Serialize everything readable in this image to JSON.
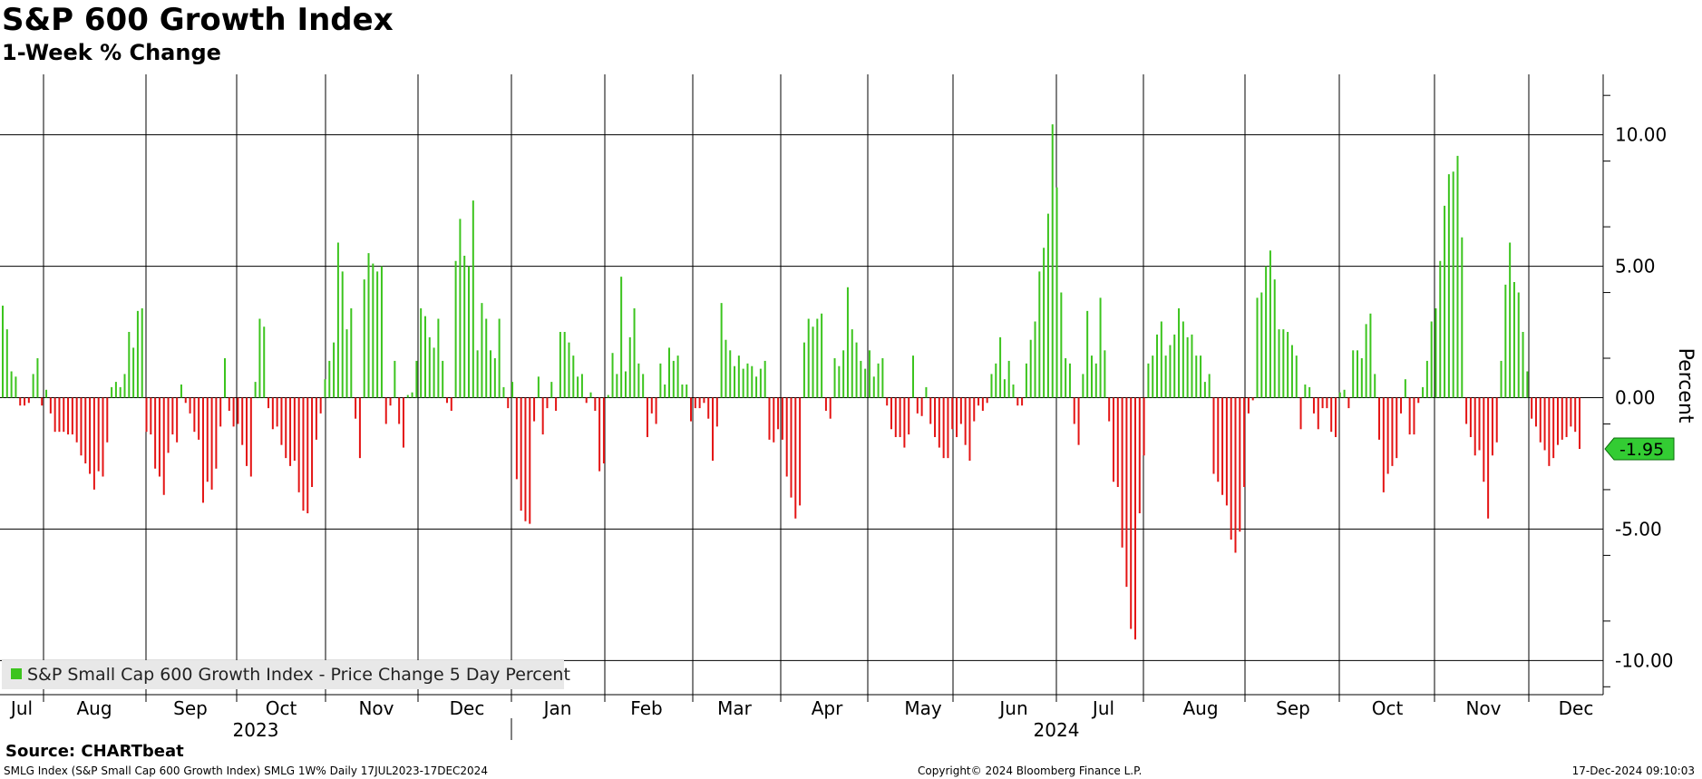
{
  "header": {
    "title": "S&P 600 Growth Index",
    "subtitle": "1-Week % Change"
  },
  "source": "Source: CHARTbeat",
  "footer": {
    "left": "SMLG Index (S&P Small Cap 600 Growth Index) SMLG 1W% Daily 17JUL2023-17DEC2024",
    "center": "Copyright© 2024 Bloomberg Finance L.P.",
    "right": "17-Dec-2024 09:10:03"
  },
  "colors": {
    "positive": "#3cc41e",
    "negative": "#e41414",
    "badge": "#33cc33",
    "grid": "#000000"
  },
  "chart_data": {
    "type": "bar",
    "title": "S&P 600 Growth Index",
    "subtitle": "1-Week % Change",
    "ylabel": "Percent",
    "ylim": [
      -11.3,
      12.3
    ],
    "yticks": [
      10,
      5,
      0,
      -5,
      -10
    ],
    "ytick_labels": [
      "10.00",
      "5.00",
      "0.00",
      "-5.00",
      "-10.00"
    ],
    "grid": true,
    "legend": {
      "position": "bottom-left",
      "label": "S&P Small Cap 600 Growth Index - Price Change 5 Day Percent"
    },
    "last_value_label": "-1.95",
    "last_value": -1.95,
    "months": [
      {
        "label": "Jul",
        "year": 2023
      },
      {
        "label": "Aug",
        "year": 2023
      },
      {
        "label": "Sep",
        "year": 2023
      },
      {
        "label": "Oct",
        "year": 2023
      },
      {
        "label": "Nov",
        "year": 2023
      },
      {
        "label": "Dec",
        "year": 2023
      },
      {
        "label": "Jan",
        "year": 2024
      },
      {
        "label": "Feb",
        "year": 2024
      },
      {
        "label": "Mar",
        "year": 2024
      },
      {
        "label": "Apr",
        "year": 2024
      },
      {
        "label": "May",
        "year": 2024
      },
      {
        "label": "Jun",
        "year": 2024
      },
      {
        "label": "Jul",
        "year": 2024
      },
      {
        "label": "Aug",
        "year": 2024
      },
      {
        "label": "Sep",
        "year": 2024
      },
      {
        "label": "Oct",
        "year": 2024
      },
      {
        "label": "Nov",
        "year": 2024
      },
      {
        "label": "Dec",
        "year": 2024
      }
    ],
    "years": [
      "2023",
      "2024"
    ],
    "series": [
      {
        "name": "S&P Small Cap 600 Growth Index - Price Change 5 Day Percent",
        "values": [
          3.5,
          2.6,
          1.0,
          0.8,
          -0.3,
          -0.3,
          -0.2,
          0.9,
          1.5,
          -0.3,
          0.3,
          -0.6,
          -1.3,
          -1.3,
          -1.3,
          -1.4,
          -1.4,
          -1.7,
          -2.2,
          -2.5,
          -2.9,
          -3.5,
          -2.8,
          -3.0,
          -1.7,
          0.4,
          0.6,
          0.4,
          0.9,
          2.5,
          1.9,
          3.3,
          3.4,
          -1.3,
          -1.4,
          -2.7,
          -3.0,
          -3.7,
          -2.1,
          -1.4,
          -1.7,
          0.5,
          -0.2,
          -0.6,
          -1.3,
          -1.6,
          -4.0,
          -3.2,
          -3.5,
          -2.7,
          -1.1,
          1.5,
          -0.5,
          -1.1,
          -1.0,
          -1.8,
          -2.6,
          -3.0,
          0.6,
          3.0,
          2.7,
          -0.4,
          -1.2,
          -1.1,
          -1.8,
          -2.3,
          -2.6,
          -2.4,
          -3.6,
          -4.3,
          -4.4,
          -3.4,
          -1.6,
          -0.6,
          0.7,
          1.4,
          2.1,
          5.9,
          4.8,
          2.6,
          3.4,
          -0.8,
          -2.3,
          4.5,
          5.5,
          5.1,
          4.8,
          5.0,
          -1.0,
          -0.3,
          1.4,
          -1.0,
          -1.9,
          0.1,
          0.2,
          1.4,
          3.4,
          3.1,
          2.3,
          1.9,
          3.0,
          1.4,
          -0.2,
          -0.5,
          5.2,
          6.8,
          5.4,
          5.0,
          7.5,
          1.8,
          3.6,
          3.0,
          1.8,
          1.5,
          3.0,
          0.4,
          -0.4,
          0.6,
          -3.1,
          -4.3,
          -4.7,
          -4.8,
          -0.9,
          0.8,
          -1.4,
          -0.4,
          0.6,
          -0.5,
          2.5,
          2.5,
          2.1,
          1.6,
          0.8,
          0.9,
          -0.2,
          0.2,
          -0.5,
          -2.8,
          -2.5,
          0.1,
          1.7,
          0.9,
          4.6,
          1.0,
          2.3,
          3.4,
          1.3,
          0.9,
          -1.5,
          -0.6,
          -1.0,
          1.3,
          0.5,
          1.9,
          1.4,
          1.6,
          0.5,
          0.5,
          -0.9,
          -0.4,
          -0.4,
          -0.2,
          -0.8,
          -2.4,
          -1.1,
          3.6,
          2.2,
          1.8,
          1.2,
          1.6,
          1.1,
          1.3,
          1.2,
          0.8,
          1.1,
          1.4,
          -1.6,
          -1.7,
          -1.2,
          -1.6,
          -3.0,
          -3.8,
          -4.6,
          -4.1,
          2.1,
          3.0,
          2.7,
          3.0,
          3.2,
          -0.5,
          -0.8,
          1.5,
          1.2,
          1.8,
          4.2,
          2.6,
          2.1,
          1.4,
          1.1,
          1.8,
          0.8,
          1.3,
          1.5,
          -0.3,
          -1.2,
          -1.5,
          -1.5,
          -1.9,
          -1.4,
          1.6,
          -0.6,
          -0.7,
          0.4,
          -1.0,
          -1.5,
          -1.9,
          -2.3,
          -2.3,
          -1.2,
          -1.5,
          -1.0,
          -1.8,
          -2.4,
          -0.9,
          -0.3,
          -0.5,
          -0.2,
          0.9,
          1.3,
          2.3,
          0.7,
          1.4,
          0.5,
          -0.3,
          -0.3,
          1.3,
          2.2,
          2.9,
          4.8,
          5.7,
          7.0,
          10.4,
          8.0,
          4.0,
          1.5,
          1.3,
          -1.0,
          -1.8,
          0.9,
          3.3,
          1.6,
          1.3,
          3.8,
          1.8,
          -0.9,
          -3.2,
          -3.4,
          -5.7,
          -7.2,
          -8.8,
          -9.2,
          -4.4,
          -2.2,
          1.3,
          1.6,
          2.4,
          2.9,
          1.6,
          2.0,
          2.4,
          3.4,
          2.9,
          2.3,
          2.4,
          1.6,
          1.6,
          0.6,
          0.9,
          -2.9,
          -3.2,
          -3.7,
          -4.1,
          -5.4,
          -5.9,
          -5.1,
          -3.4,
          -0.6,
          -0.1,
          3.8,
          4.0,
          5.0,
          5.6,
          4.5,
          2.6,
          2.6,
          2.5,
          2.0,
          1.6,
          -1.2,
          0.5,
          0.4,
          -0.6,
          -1.2,
          -0.4,
          -0.4,
          -1.3,
          -1.5,
          0.2,
          0.3,
          -0.4,
          1.8,
          1.8,
          1.5,
          2.8,
          3.2,
          0.9,
          -1.6,
          -3.6,
          -2.9,
          -2.6,
          -2.3,
          -0.6,
          0.7,
          -1.4,
          -1.4,
          -0.2,
          0.4,
          1.4,
          2.9,
          3.4,
          5.2,
          7.3,
          8.5,
          8.6,
          9.2,
          6.1,
          -1.0,
          -1.5,
          -2.2,
          -2.0,
          -3.2,
          -4.6,
          -2.2,
          -1.7,
          1.4,
          4.3,
          5.9,
          4.4,
          4.0,
          2.5,
          1.0,
          -0.8,
          -1.1,
          -1.7,
          -2.0,
          -2.6,
          -2.3,
          -1.8,
          -1.6,
          -1.5,
          -1.1,
          -1.3,
          -1.95
        ]
      }
    ]
  }
}
